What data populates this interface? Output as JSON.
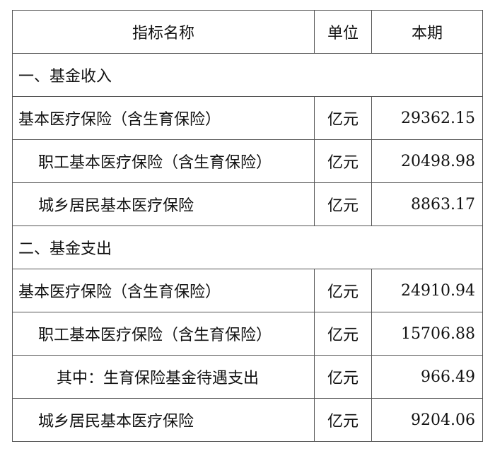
{
  "headers": {
    "name": "指标名称",
    "unit": "单位",
    "value": "本期"
  },
  "rows": [
    {
      "type": "section",
      "name": "一、基金收入"
    },
    {
      "type": "item",
      "indent": 0,
      "name": "基本医疗保险（含生育保险）",
      "unit": "亿元",
      "value": "29362.15"
    },
    {
      "type": "item",
      "indent": 1,
      "name": "职工基本医疗保险（含生育保险）",
      "unit": "亿元",
      "value": "20498.98"
    },
    {
      "type": "item",
      "indent": 1,
      "name": "城乡居民基本医疗保险",
      "unit": "亿元",
      "value": "8863.17"
    },
    {
      "type": "section",
      "name": "二、基金支出"
    },
    {
      "type": "item",
      "indent": 0,
      "name": "基本医疗保险（含生育保险）",
      "unit": "亿元",
      "value": "24910.94"
    },
    {
      "type": "item",
      "indent": 1,
      "name": "职工基本医疗保险（含生育保险）",
      "unit": "亿元",
      "value": "15706.88"
    },
    {
      "type": "item",
      "indent": 2,
      "name": "其中：生育保险基金待遇支出",
      "unit": "亿元",
      "value": "966.49"
    },
    {
      "type": "item",
      "indent": 1,
      "name": "城乡居民基本医疗保险",
      "unit": "亿元",
      "value": "9204.06"
    }
  ]
}
